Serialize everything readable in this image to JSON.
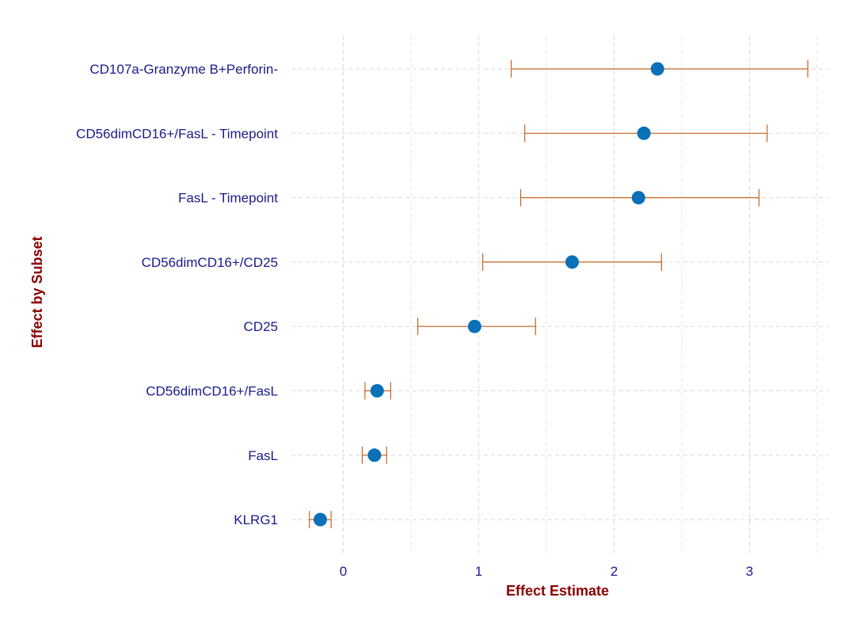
{
  "chart_data": {
    "type": "forest",
    "title": "",
    "xlabel": "Effect Estimate",
    "ylabel": "Effect by Subset",
    "xlim": [
      -0.38,
      3.6
    ],
    "xticks": [
      0,
      1,
      2,
      3
    ],
    "tick_labels": [
      "0",
      "1",
      "2",
      "3"
    ],
    "grid": true,
    "grid_style": "dashed",
    "point_color": "#0a70b8",
    "errorbar_color": "#c8641e",
    "categories": [
      "CD107a-Granzyme B+Perforin-",
      "CD56dimCD16+/FasL - Timepoint",
      "FasL - Timepoint",
      "CD56dimCD16+/CD25",
      "CD25",
      "CD56dimCD16+/FasL",
      "FasL",
      "KLRG1"
    ],
    "estimate": [
      2.32,
      2.22,
      2.18,
      1.69,
      0.97,
      0.25,
      0.23,
      -0.17
    ],
    "ci_lower": [
      1.24,
      1.34,
      1.31,
      1.03,
      0.55,
      0.16,
      0.14,
      -0.25
    ],
    "ci_upper": [
      3.43,
      3.13,
      3.07,
      2.35,
      1.42,
      0.35,
      0.32,
      -0.09
    ]
  }
}
